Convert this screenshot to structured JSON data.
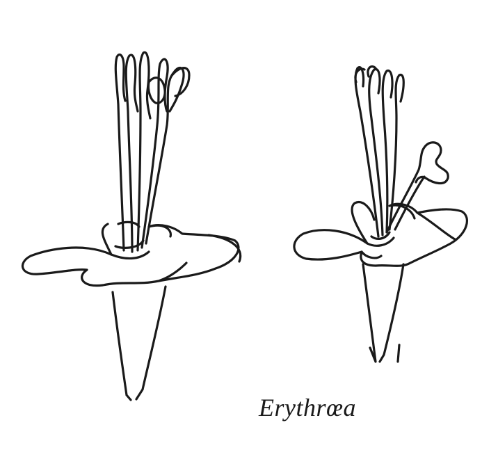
{
  "caption": "Erythrœa",
  "figure": {
    "subject": "flower-drawings",
    "count": 2
  },
  "colors": {
    "ink": "#1a1a1a",
    "paper": "#ffffff"
  }
}
